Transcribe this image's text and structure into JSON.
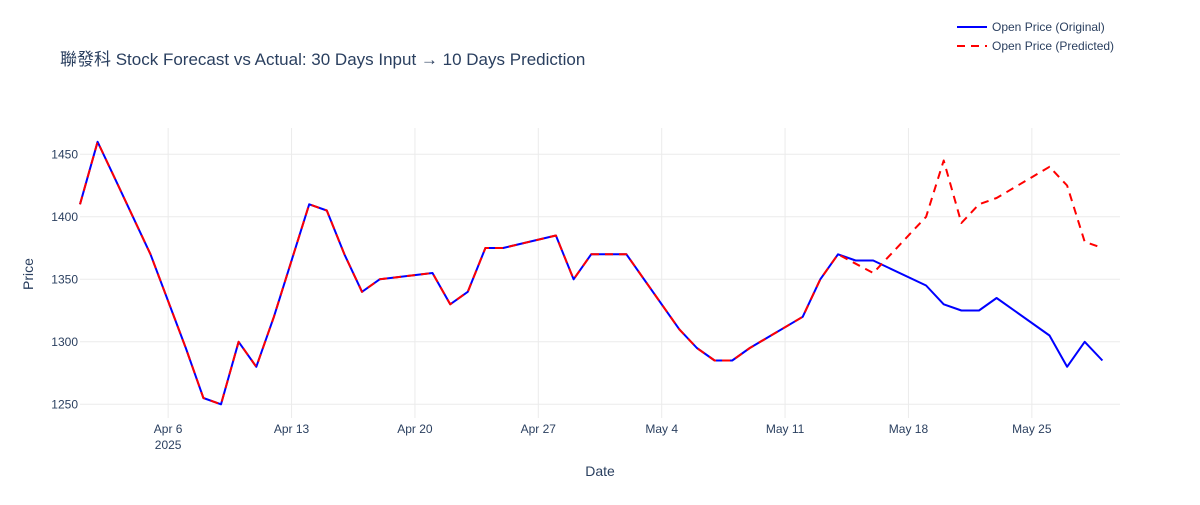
{
  "chart_data": {
    "type": "line",
    "title": "聯發科 Stock Forecast vs Actual: 30 Days Input → 10 Days Prediction",
    "xlabel": "Date",
    "ylabel": "Price",
    "x_range": [
      "2025-04-01",
      "2025-05-30"
    ],
    "ylim": [
      1239,
      1471
    ],
    "y_ticks": [
      1250,
      1300,
      1350,
      1400,
      1450
    ],
    "x_ticks": [
      {
        "date": "2025-04-06",
        "label": "Apr 6",
        "sublabel": "2025"
      },
      {
        "date": "2025-04-13",
        "label": "Apr 13",
        "sublabel": ""
      },
      {
        "date": "2025-04-20",
        "label": "Apr 20",
        "sublabel": ""
      },
      {
        "date": "2025-04-27",
        "label": "Apr 27",
        "sublabel": ""
      },
      {
        "date": "2025-05-04",
        "label": "May 4",
        "sublabel": ""
      },
      {
        "date": "2025-05-11",
        "label": "May 11",
        "sublabel": ""
      },
      {
        "date": "2025-05-18",
        "label": "May 18",
        "sublabel": ""
      },
      {
        "date": "2025-05-25",
        "label": "May 25",
        "sublabel": ""
      }
    ],
    "grid": true,
    "legend_position": "top-right",
    "series": [
      {
        "name": "Open Price (Original)",
        "color": "#0000ff",
        "dash": "solid",
        "x": [
          "2025-04-01",
          "2025-04-02",
          "2025-04-03",
          "2025-04-04",
          "2025-04-05",
          "2025-04-07",
          "2025-04-08",
          "2025-04-09",
          "2025-04-10",
          "2025-04-11",
          "2025-04-12",
          "2025-04-14",
          "2025-04-15",
          "2025-04-16",
          "2025-04-17",
          "2025-04-18",
          "2025-04-21",
          "2025-04-22",
          "2025-04-23",
          "2025-04-24",
          "2025-04-25",
          "2025-04-28",
          "2025-04-29",
          "2025-04-30",
          "2025-05-02",
          "2025-05-05",
          "2025-05-06",
          "2025-05-07",
          "2025-05-08",
          "2025-05-09",
          "2025-05-12",
          "2025-05-13",
          "2025-05-14",
          "2025-05-15",
          "2025-05-16",
          "2025-05-19",
          "2025-05-20",
          "2025-05-21",
          "2025-05-22",
          "2025-05-23",
          "2025-05-26",
          "2025-05-27",
          "2025-05-28",
          "2025-05-29"
        ],
        "y": [
          1410,
          1460,
          1430,
          1400,
          1370,
          1295,
          1255,
          1250,
          1300,
          1280,
          1320,
          1410,
          1405,
          1370,
          1340,
          1350,
          1355,
          1330,
          1340,
          1375,
          1375,
          1385,
          1350,
          1370,
          1370,
          1310,
          1295,
          1285,
          1285,
          1295,
          1320,
          1350,
          1370,
          1365,
          1365,
          1345,
          1330,
          1325,
          1325,
          1335,
          1305,
          1280,
          1300,
          1285
        ]
      },
      {
        "name": "Open Price (Predicted)",
        "color": "#ff0000",
        "dash": "dashed",
        "x": [
          "2025-04-01",
          "2025-04-02",
          "2025-04-03",
          "2025-04-04",
          "2025-04-05",
          "2025-04-07",
          "2025-04-08",
          "2025-04-09",
          "2025-04-10",
          "2025-04-11",
          "2025-04-12",
          "2025-04-14",
          "2025-04-15",
          "2025-04-16",
          "2025-04-17",
          "2025-04-18",
          "2025-04-21",
          "2025-04-22",
          "2025-04-23",
          "2025-04-24",
          "2025-04-25",
          "2025-04-28",
          "2025-04-29",
          "2025-04-30",
          "2025-05-02",
          "2025-05-05",
          "2025-05-06",
          "2025-05-07",
          "2025-05-08",
          "2025-05-09",
          "2025-05-12",
          "2025-05-13",
          "2025-05-14",
          "2025-05-16",
          "2025-05-19",
          "2025-05-20",
          "2025-05-21",
          "2025-05-22",
          "2025-05-23",
          "2025-05-26",
          "2025-05-27",
          "2025-05-28",
          "2025-05-29"
        ],
        "y": [
          1410,
          1460,
          1430,
          1400,
          1370,
          1295,
          1255,
          1250,
          1300,
          1280,
          1320,
          1410,
          1405,
          1370,
          1340,
          1350,
          1355,
          1330,
          1340,
          1375,
          1375,
          1385,
          1350,
          1370,
          1370,
          1310,
          1295,
          1285,
          1285,
          1295,
          1320,
          1350,
          1370,
          1355,
          1400,
          1445,
          1395,
          1410,
          1415,
          1440,
          1425,
          1380,
          1375
        ]
      }
    ]
  }
}
